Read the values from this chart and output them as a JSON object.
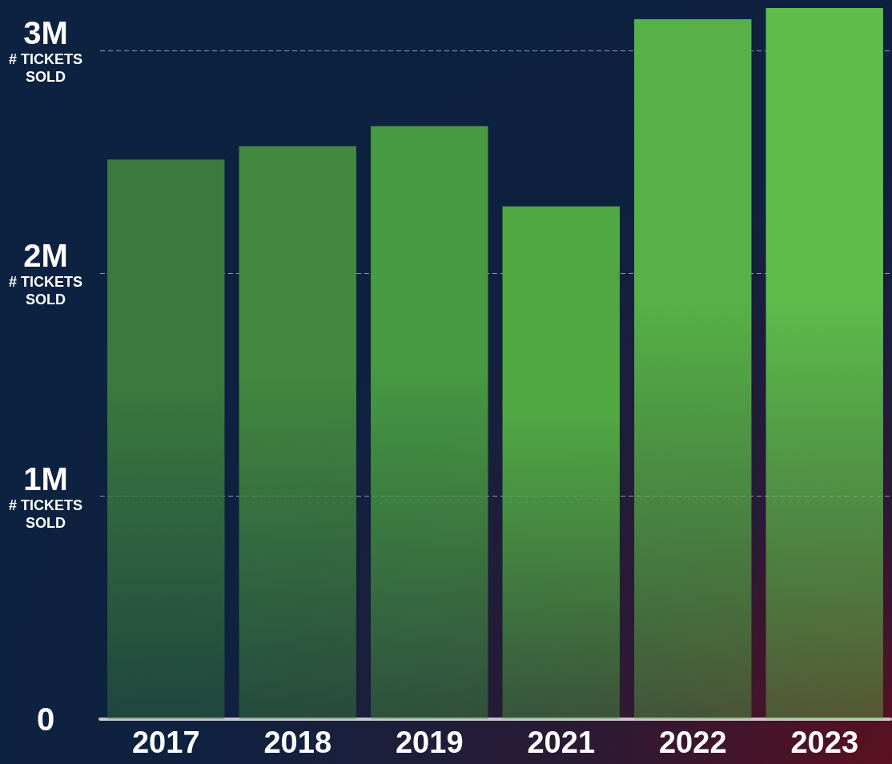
{
  "chart_data": {
    "type": "bar",
    "ylabel": "# TICKETS SOLD",
    "categories": [
      "2017",
      "2018",
      "2019",
      "2021",
      "2022",
      "2023"
    ],
    "values": [
      2510000,
      2570000,
      2660000,
      2300000,
      3140000,
      3190000
    ],
    "colors": [
      "#3a7a3e",
      "#42883f",
      "#489a42",
      "#51a843",
      "#57b146",
      "#5fbd4a"
    ],
    "ylim": [
      0,
      3190000
    ],
    "yticks": [
      0,
      {
        "value": 1000000,
        "label": "1M"
      },
      {
        "value": 2000000,
        "label": "2M"
      },
      {
        "value": 3000000,
        "label": "3M"
      }
    ],
    "grid": "y"
  }
}
